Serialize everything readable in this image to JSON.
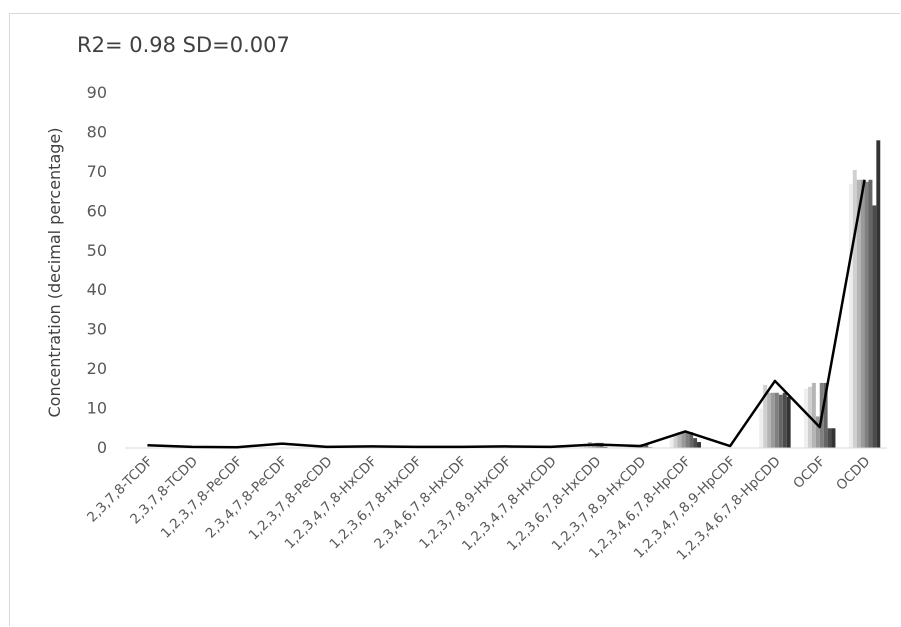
{
  "chart_data": {
    "type": "bar",
    "annotation": "R2= 0.98 SD=0.007",
    "ylabel": "Concentration (decimal percentage)",
    "xlabel": "",
    "ylim": [
      0,
      90
    ],
    "yticks": [
      0,
      10,
      20,
      30,
      40,
      50,
      60,
      70,
      80,
      90
    ],
    "grid": false,
    "categories": [
      "2,3,7,8-TCDF",
      "2,3,7,8-TCDD",
      "1,2,3,7,8-PeCDF",
      "2,3,4,7,8-PeCDF",
      "1,2,3,7,8-PeCDD",
      "1,2,3,4,7,8-HxCDF",
      "1,2,3,6,7,8-HxCDF",
      "2,3,4,6,7,8-HxCDF",
      "1,2,3,7,8,9-HxCDF",
      "1,2,3,4,7,8-HxCDD",
      "1,2,3,6,7,8-HxCDD",
      "1,2,3,7,8,9-HxCDD",
      "1,2,3,4,6,7,8-HpCDF",
      "1,2,3,4,7,8,9-HpCDF",
      "1,2,3,4,6,7,8-HpCDD",
      "OCDF",
      "OCDD"
    ],
    "series_colors": [
      "#eeeeee",
      "#d0d0d0",
      "#b5b5b5",
      "#9a9a9a",
      "#808080",
      "#666666",
      "#4c4c4c",
      "#333333"
    ],
    "series": [
      {
        "values": [
          0,
          0,
          0,
          0,
          0,
          0,
          0,
          0,
          0,
          0,
          0.4,
          0.3,
          2.5,
          0.1,
          10.0,
          15.0,
          67.0
        ]
      },
      {
        "values": [
          0,
          0,
          0,
          0,
          0,
          0,
          0,
          0,
          0,
          0,
          0.5,
          0.3,
          3.5,
          0.1,
          16.0,
          15.5,
          70.5
        ]
      },
      {
        "values": [
          0,
          0,
          0,
          0,
          0,
          0,
          0,
          0,
          0,
          0,
          1.5,
          0.4,
          4.0,
          0.1,
          14.0,
          16.5,
          68.0
        ]
      },
      {
        "values": [
          0,
          0,
          0,
          0,
          0,
          0,
          0,
          0,
          0,
          0,
          0.6,
          0.3,
          4.2,
          0.1,
          14.0,
          8.0,
          68.0
        ]
      },
      {
        "values": [
          0,
          0,
          0,
          0,
          0,
          0,
          0,
          0,
          0,
          0,
          1.3,
          1.0,
          3.8,
          0.1,
          14.0,
          16.5,
          67.5
        ]
      },
      {
        "values": [
          0,
          0,
          0,
          0,
          0,
          0,
          0,
          0,
          0,
          0,
          1.3,
          1.0,
          4.0,
          0.1,
          13.5,
          16.5,
          68.0
        ]
      },
      {
        "values": [
          0,
          0,
          0,
          0,
          0,
          0,
          0,
          0,
          0,
          0,
          0.3,
          0.2,
          2.5,
          0.1,
          14.0,
          5.0,
          61.5
        ]
      },
      {
        "values": [
          0,
          0,
          0,
          0,
          0,
          0,
          0,
          0,
          0,
          0,
          0.1,
          0.1,
          1.5,
          0.0,
          13.0,
          5.0,
          78.0
        ]
      }
    ],
    "line": {
      "color": "#000000",
      "values": [
        0.7,
        0.3,
        0.2,
        1.1,
        0.3,
        0.4,
        0.3,
        0.3,
        0.4,
        0.3,
        0.9,
        0.5,
        4.2,
        0.5,
        17.0,
        5.3,
        68.0
      ]
    }
  }
}
